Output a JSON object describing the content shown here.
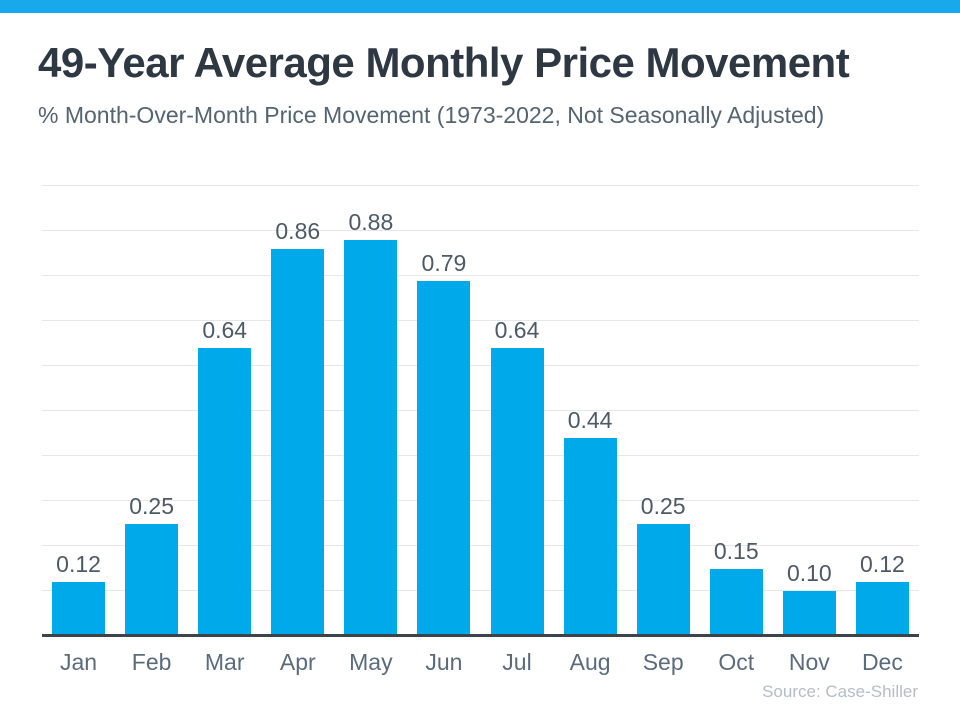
{
  "colors": {
    "top_strip": "#18a8ec",
    "accent": "#00a9e9",
    "title_text": "#2e3842",
    "subtitle_text": "#546470",
    "label_text": "#4d5a66",
    "axis_text": "#5b6b7b",
    "axis_line": "#3c434b",
    "gridline": "#e5e7e8",
    "source_text": "#b4bdc6"
  },
  "chart_data": {
    "type": "bar",
    "title": "49-Year Average Monthly Price Movement",
    "subtitle": "% Month-Over-Month Price Movement (1973-2022, Not Seasonally Adjusted)",
    "categories": [
      "Jan",
      "Feb",
      "Mar",
      "Apr",
      "May",
      "Jun",
      "Jul",
      "Aug",
      "Sep",
      "Oct",
      "Nov",
      "Dec"
    ],
    "values": [
      0.12,
      0.25,
      0.64,
      0.86,
      0.88,
      0.79,
      0.64,
      0.44,
      0.25,
      0.15,
      0.1,
      0.12
    ],
    "value_labels": [
      "0.12",
      "0.25",
      "0.64",
      "0.86",
      "0.88",
      "0.79",
      "0.64",
      "0.44",
      "0.25",
      "0.15",
      "0.10",
      "0.12"
    ],
    "xlabel": "",
    "ylabel": "",
    "ylim": [
      0,
      1.0
    ],
    "gridline_interval": 0.1,
    "grid": "horizontal-only",
    "legend": "none",
    "bar_color": "#00a9e9",
    "source": "Source: Case-Shiller"
  }
}
